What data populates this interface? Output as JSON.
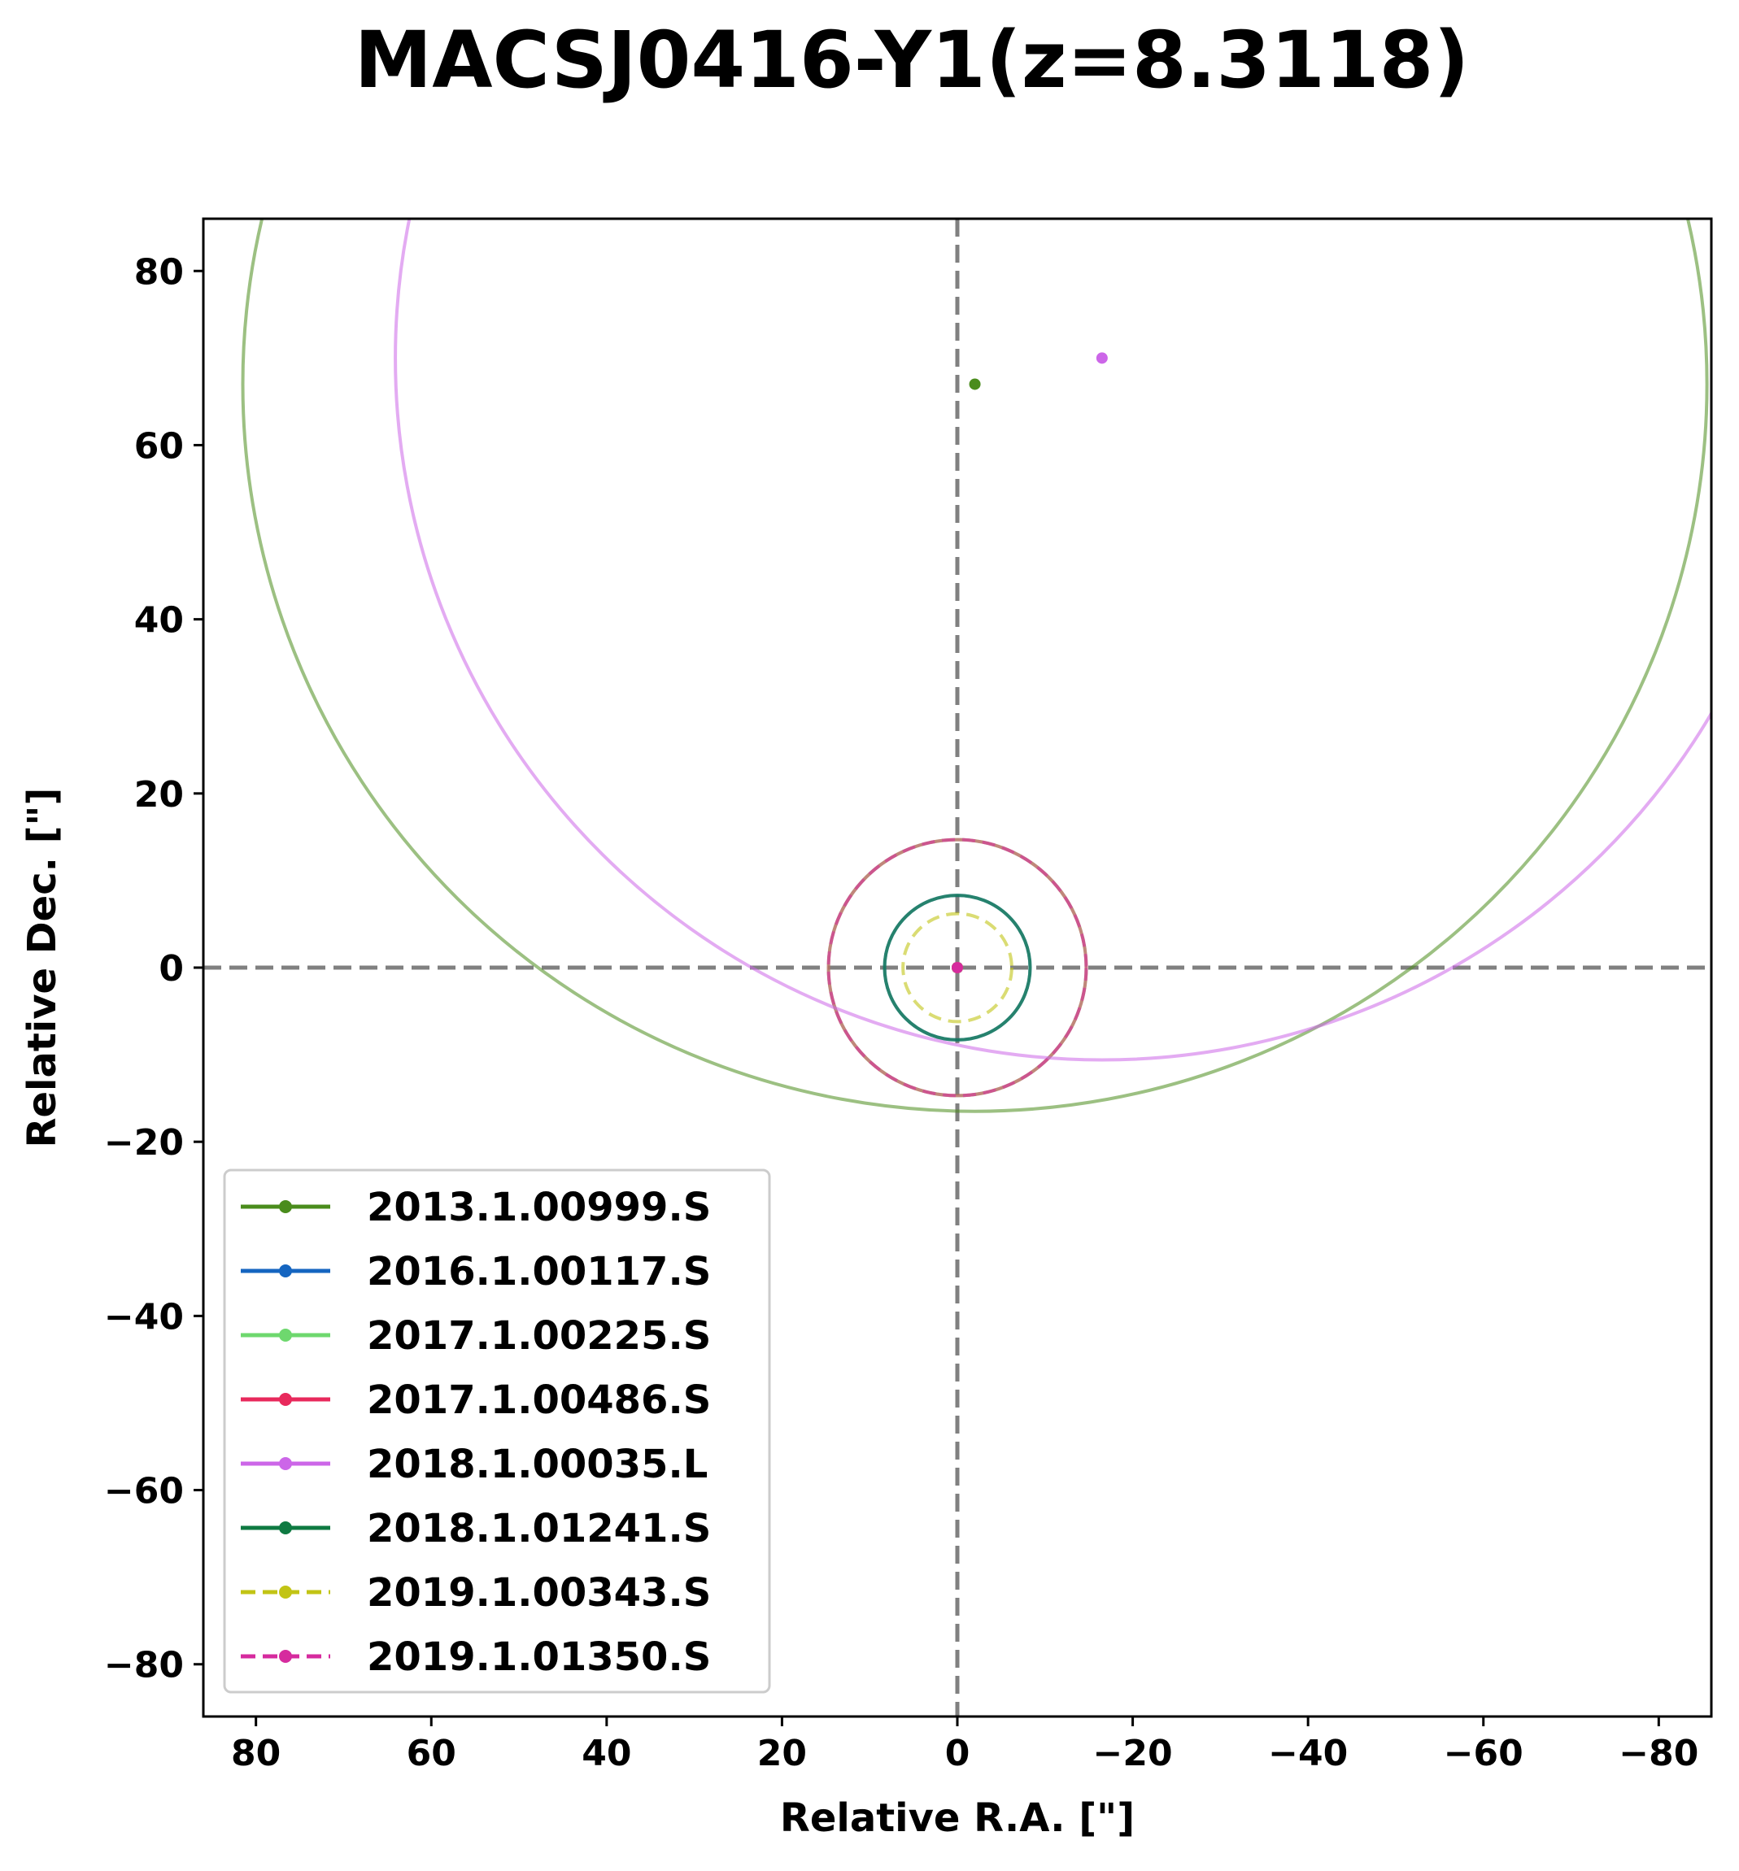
{
  "chart_data": {
    "type": "scatter",
    "title": "MACSJ0416-Y1(z=8.3118)",
    "xlabel": "Relative R.A. [\"]",
    "ylabel": "Relative Dec. [\"]",
    "xlim": [
      86,
      -86
    ],
    "ylim": [
      -86,
      86
    ],
    "xticks": [
      80,
      60,
      40,
      20,
      0,
      -20,
      -40,
      -60,
      -80
    ],
    "yticks": [
      80,
      60,
      40,
      20,
      0,
      -20,
      -40,
      -60,
      -80
    ],
    "legend_location": "lower left",
    "reference_lines": [
      {
        "orientation": "vertical",
        "value": 0,
        "style": "dashed",
        "color": "#808080"
      },
      {
        "orientation": "horizontal",
        "value": 0,
        "style": "dashed",
        "color": "#808080"
      }
    ],
    "series": [
      {
        "name": "2013.1.00999.S",
        "color": "#4a8c1c",
        "style": "solid",
        "center": [
          -2,
          67
        ],
        "radius": 83.5,
        "circle_alpha": 0.55
      },
      {
        "name": "2016.1.00117.S",
        "color": "#1565c0",
        "style": "solid",
        "center": [
          0,
          0
        ],
        "radius": 8.3,
        "circle_alpha": 0.7
      },
      {
        "name": "2017.1.00225.S",
        "color": "#6ed86e",
        "style": "solid",
        "center": [
          0,
          0
        ],
        "radius": 14.7,
        "circle_alpha": 0.7
      },
      {
        "name": "2017.1.00486.S",
        "color": "#e8295c",
        "style": "solid",
        "center": [
          0,
          0
        ],
        "radius": 14.7,
        "circle_alpha": 0.5
      },
      {
        "name": "2018.1.00035.L",
        "color": "#cc66e8",
        "style": "solid",
        "center": [
          -16.5,
          70
        ],
        "radius": 80.6,
        "circle_alpha": 0.55
      },
      {
        "name": "2018.1.01241.S",
        "color": "#0f7a42",
        "style": "solid",
        "center": [
          0,
          0
        ],
        "radius": 8.3,
        "circle_alpha": 0.7
      },
      {
        "name": "2019.1.00343.S",
        "color": "#c2c415",
        "style": "dashed",
        "center": [
          0,
          0
        ],
        "radius": 6.2,
        "circle_alpha": 0.6
      },
      {
        "name": "2019.1.01350.S",
        "color": "#d62b9e",
        "style": "dashed",
        "center": [
          0,
          0
        ],
        "radius": 14.7,
        "circle_alpha": 0.55
      }
    ]
  }
}
